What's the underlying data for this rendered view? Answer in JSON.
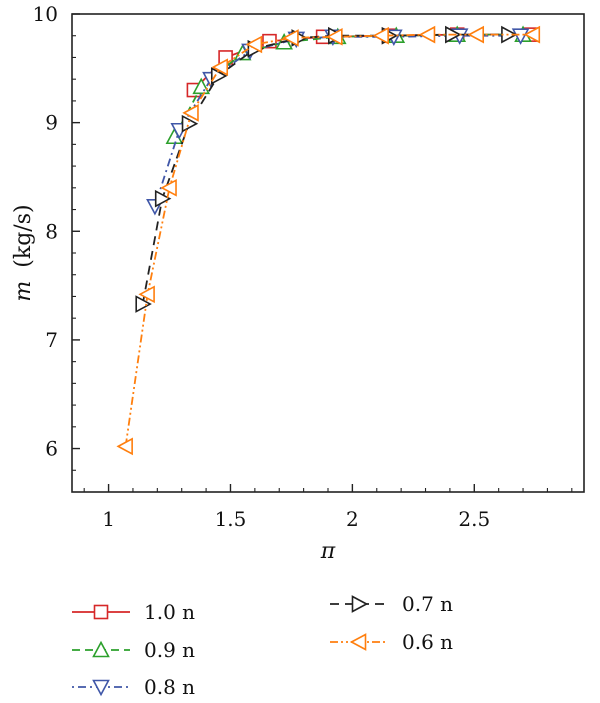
{
  "chart_data": {
    "type": "line",
    "title": "",
    "xlabel": "π",
    "ylabel_var": "m",
    "ylabel_unit": "(kg/s)",
    "xlim": [
      0.85,
      2.95
    ],
    "ylim": [
      5.6,
      10.0
    ],
    "xticks": [
      1,
      1.5,
      2,
      2.5
    ],
    "xtick_labels": [
      "1",
      "1.5",
      "2",
      "2.5"
    ],
    "yticks": [
      6,
      7,
      8,
      9,
      10
    ],
    "ytick_labels": [
      "6",
      "7",
      "8",
      "9",
      "10"
    ],
    "grid": false,
    "legend_position": "bottom",
    "series": [
      {
        "name": "1.0 n",
        "color": "#d62728",
        "marker": "square",
        "dash": "",
        "x": [
          1.35,
          1.48,
          1.66,
          1.88,
          2.15,
          2.43,
          2.73
        ],
        "y": [
          9.3,
          9.6,
          9.75,
          9.79,
          9.8,
          9.81,
          9.81
        ]
      },
      {
        "name": "0.9 n",
        "color": "#2ca02c",
        "marker": "triangle-up",
        "dash": "8,5",
        "x": [
          1.27,
          1.38,
          1.55,
          1.72,
          1.94,
          2.18,
          2.43,
          2.7
        ],
        "y": [
          8.87,
          9.33,
          9.64,
          9.74,
          9.79,
          9.8,
          9.81,
          9.81
        ]
      },
      {
        "name": "0.8 n",
        "color": "#4057a8",
        "marker": "triangle-down",
        "dash": "2,4,8,4",
        "x": [
          1.19,
          1.29,
          1.42,
          1.58,
          1.77,
          1.92,
          2.17,
          2.44,
          2.69
        ],
        "y": [
          8.23,
          8.93,
          9.4,
          9.66,
          9.77,
          9.79,
          9.79,
          9.8,
          9.8
        ]
      },
      {
        "name": "0.7 n",
        "color": "#222222",
        "marker": "triangle-right",
        "dash": "9,6",
        "x": [
          1.14,
          1.22,
          1.33,
          1.45,
          1.6,
          1.78,
          1.93,
          2.15,
          2.41,
          2.64
        ],
        "y": [
          7.33,
          8.3,
          8.99,
          9.43,
          9.68,
          9.78,
          9.8,
          9.8,
          9.81,
          9.81
        ]
      },
      {
        "name": "0.6 n",
        "color": "#ff7f0e",
        "marker": "triangle-left",
        "dash": "8,3,2,3,2,3",
        "x": [
          1.07,
          1.16,
          1.25,
          1.34,
          1.46,
          1.6,
          1.75,
          1.93,
          2.12,
          2.31,
          2.51,
          2.74
        ],
        "y": [
          6.02,
          7.42,
          8.4,
          9.09,
          9.51,
          9.72,
          9.78,
          9.79,
          9.8,
          9.81,
          9.81,
          9.81
        ]
      }
    ]
  }
}
